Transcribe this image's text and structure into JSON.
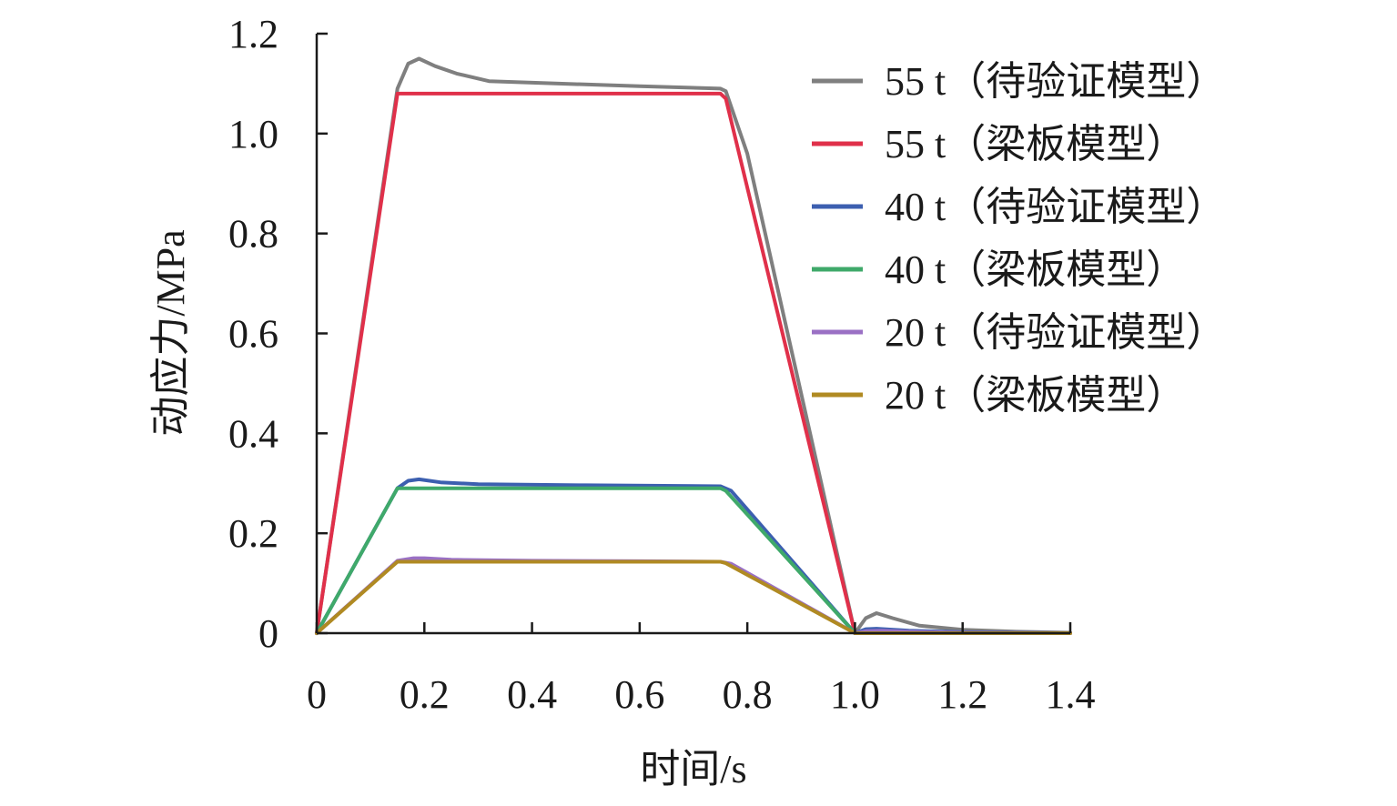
{
  "chart_data": {
    "type": "line",
    "xlabel": "时间/s",
    "ylabel": "动应力/MPa",
    "xlim": [
      0,
      1.4
    ],
    "ylim": [
      0,
      1.2
    ],
    "x_ticks": [
      "0",
      "0.2",
      "0.4",
      "0.6",
      "0.8",
      "1.0",
      "1.2",
      "1.4"
    ],
    "y_ticks": [
      "0",
      "0.2",
      "0.4",
      "0.6",
      "0.8",
      "1.0",
      "1.2"
    ],
    "legend_position": "top-right",
    "grid": false,
    "series": [
      {
        "name": "55 t（待验证模型）",
        "color": "#7f7f7f",
        "x": [
          0,
          0.15,
          0.17,
          0.19,
          0.22,
          0.26,
          0.32,
          0.45,
          0.6,
          0.75,
          0.76,
          0.8,
          1.0,
          1.02,
          1.04,
          1.07,
          1.12,
          1.2,
          1.3,
          1.4
        ],
        "y": [
          0,
          1.09,
          1.14,
          1.15,
          1.135,
          1.12,
          1.105,
          1.1,
          1.095,
          1.09,
          1.085,
          0.96,
          0,
          0.03,
          0.04,
          0.03,
          0.015,
          0.007,
          0.003,
          0.001
        ]
      },
      {
        "name": "55 t（梁板模型）",
        "color": "#e0304a",
        "x": [
          0,
          0.15,
          0.2,
          0.5,
          0.75,
          0.76,
          1.0,
          1.1,
          1.4
        ],
        "y": [
          0,
          1.08,
          1.08,
          1.08,
          1.08,
          1.07,
          0,
          0,
          0
        ]
      },
      {
        "name": "40 t（待验证模型）",
        "color": "#3c5fb0",
        "x": [
          0,
          0.15,
          0.17,
          0.19,
          0.23,
          0.3,
          0.5,
          0.75,
          0.77,
          1.0,
          1.02,
          1.04,
          1.1,
          1.2,
          1.4
        ],
        "y": [
          0,
          0.29,
          0.305,
          0.308,
          0.302,
          0.298,
          0.296,
          0.294,
          0.285,
          0,
          0.008,
          0.009,
          0.005,
          0.002,
          0
        ]
      },
      {
        "name": "40 t（梁板模型）",
        "color": "#3fa96a",
        "x": [
          0,
          0.15,
          0.3,
          0.5,
          0.75,
          0.76,
          1.0,
          1.1,
          1.4
        ],
        "y": [
          0,
          0.29,
          0.29,
          0.29,
          0.29,
          0.285,
          0,
          0,
          0
        ]
      },
      {
        "name": "20 t（待验证模型）",
        "color": "#9a70c4",
        "x": [
          0,
          0.15,
          0.18,
          0.2,
          0.25,
          0.4,
          0.6,
          0.75,
          0.77,
          1.0,
          1.02,
          1.05,
          1.1,
          1.2,
          1.4
        ],
        "y": [
          0,
          0.145,
          0.15,
          0.15,
          0.147,
          0.145,
          0.144,
          0.143,
          0.139,
          0,
          0.004,
          0.005,
          0.003,
          0.001,
          0
        ]
      },
      {
        "name": "20 t（梁板模型）",
        "color": "#b08a22",
        "x": [
          0,
          0.15,
          0.3,
          0.5,
          0.75,
          0.76,
          1.0,
          1.1,
          1.4
        ],
        "y": [
          0,
          0.143,
          0.143,
          0.143,
          0.143,
          0.14,
          0,
          0,
          0
        ]
      }
    ]
  }
}
